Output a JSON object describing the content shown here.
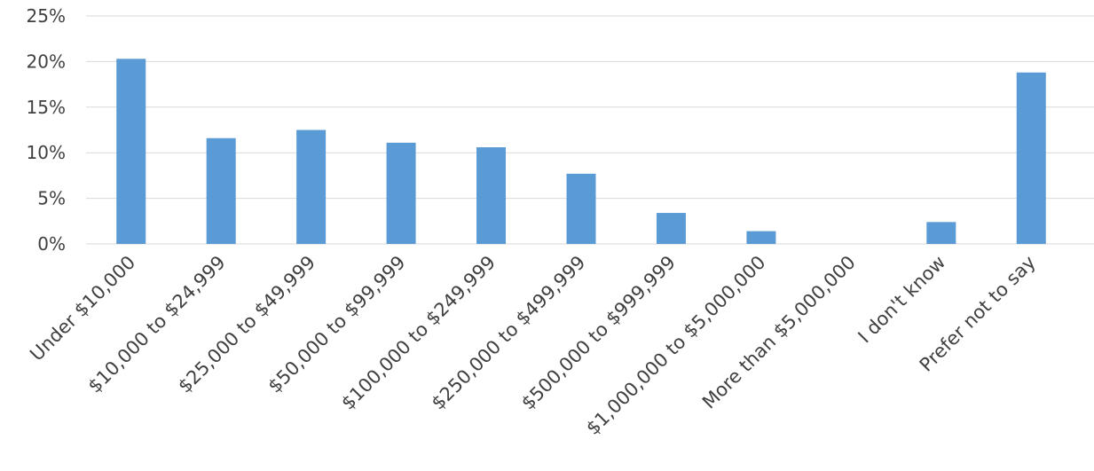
{
  "chart_data": {
    "type": "bar",
    "categories": [
      "Under $10,000",
      "$10,000 to $24,999",
      "$25,000 to $49,999",
      "$50,000 to $99,999",
      "$100,000 to $249,999",
      "$250,000 to $499,999",
      "$500,000 to $999,999",
      "$1,000,000 to $5,000,000",
      "More than $5,000,000",
      "I don't know",
      "Prefer not to say"
    ],
    "values": [
      20.3,
      11.6,
      12.5,
      11.1,
      10.6,
      7.7,
      3.4,
      1.4,
      0,
      2.4,
      18.8
    ],
    "yticks": [
      "0%",
      "5%",
      "10%",
      "15%",
      "20%",
      "25%"
    ],
    "ylim": [
      0,
      25
    ],
    "grid": true,
    "bar_color": "#5b9bd5",
    "title": "",
    "xlabel": "",
    "ylabel": ""
  }
}
